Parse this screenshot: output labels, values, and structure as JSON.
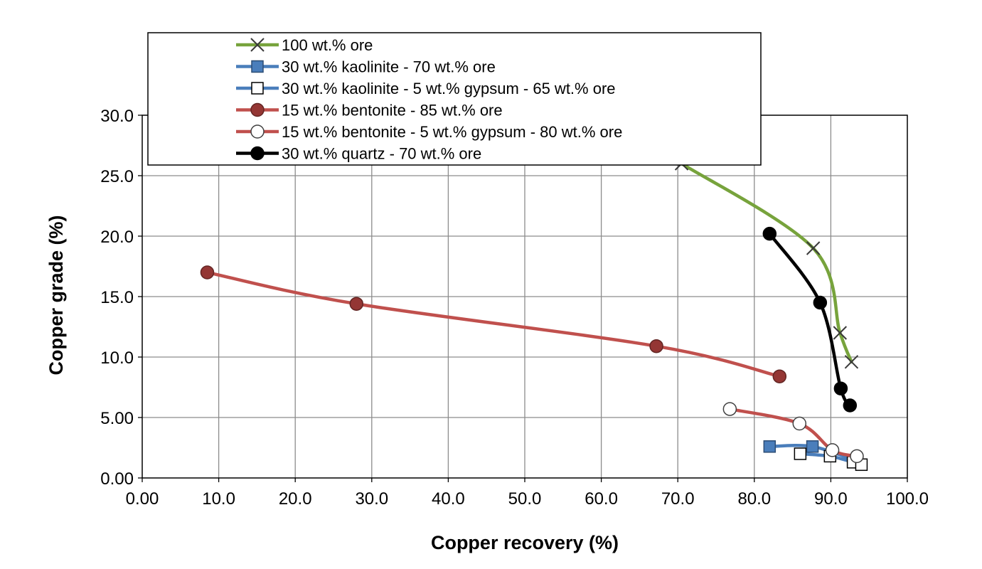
{
  "chart_data": {
    "type": "line",
    "title": "",
    "xlabel": "Copper recovery (%)",
    "ylabel": "Copper grade (%)",
    "xlim": [
      0,
      100
    ],
    "ylim": [
      0,
      30
    ],
    "grid": true,
    "legend_position": "top (overlapping plot, upper-left of center)",
    "x_ticks": [
      {
        "value": 0,
        "label": "0.00"
      },
      {
        "value": 10,
        "label": "10.0"
      },
      {
        "value": 20,
        "label": "20.0"
      },
      {
        "value": 30,
        "label": "30.0"
      },
      {
        "value": 40,
        "label": "40.0"
      },
      {
        "value": 50,
        "label": "50.0"
      },
      {
        "value": 60,
        "label": "60.0"
      },
      {
        "value": 70,
        "label": "70.0"
      },
      {
        "value": 80,
        "label": "80.0"
      },
      {
        "value": 90,
        "label": "90.0"
      },
      {
        "value": 100,
        "label": "100.0"
      }
    ],
    "y_ticks": [
      {
        "value": 0,
        "label": "0.00"
      },
      {
        "value": 5,
        "label": "5.00"
      },
      {
        "value": 10,
        "label": "10.0"
      },
      {
        "value": 15,
        "label": "15.0"
      },
      {
        "value": 20,
        "label": "20.0"
      },
      {
        "value": 25,
        "label": "25.0"
      },
      {
        "value": 30,
        "label": "30.0"
      }
    ],
    "series": [
      {
        "name": "100 wt.% ore",
        "color": "#77a33c",
        "marker": "x",
        "marker_color": "#3a3a3a",
        "points": [
          [
            70.5,
            26.0
          ],
          [
            87.7,
            19.0
          ],
          [
            91.2,
            12.0
          ],
          [
            92.7,
            9.6
          ]
        ]
      },
      {
        "name": "30 wt.% kaolinite - 70 wt.% ore",
        "color": "#4a7ebb",
        "marker": "square-filled",
        "marker_color": "#4a7ebb",
        "points": [
          [
            82.0,
            2.6
          ],
          [
            87.6,
            2.6
          ],
          [
            93.4,
            1.4
          ]
        ]
      },
      {
        "name": "30 wt.% kaolinite - 5 wt.% gypsum - 65 wt.% ore",
        "color": "#4a7ebb",
        "marker": "square-open",
        "marker_color": "#ffffff",
        "points": [
          [
            86.0,
            2.0
          ],
          [
            89.9,
            1.8
          ],
          [
            92.9,
            1.3
          ],
          [
            94.0,
            1.1
          ]
        ]
      },
      {
        "name": "15 wt.% bentonite - 85 wt.% ore",
        "color": "#c0504d",
        "marker": "circle-filled",
        "marker_color": "#943634",
        "points": [
          [
            8.5,
            17.0
          ],
          [
            28.0,
            14.4
          ],
          [
            67.2,
            10.9
          ],
          [
            83.3,
            8.4
          ]
        ]
      },
      {
        "name": "15 wt.% bentonite - 5 wt.% gypsum - 80 wt.% ore",
        "color": "#c0504d",
        "marker": "circle-open",
        "marker_color": "#ffffff",
        "points": [
          [
            76.8,
            5.7
          ],
          [
            85.9,
            4.5
          ],
          [
            90.2,
            2.3
          ],
          [
            93.4,
            1.8
          ]
        ]
      },
      {
        "name": "30 wt.% quartz - 70 wt.% ore",
        "color": "#000000",
        "marker": "circle-filled",
        "marker_color": "#000000",
        "points": [
          [
            82.0,
            20.2
          ],
          [
            88.6,
            14.5
          ],
          [
            91.3,
            7.4
          ],
          [
            92.5,
            6.0
          ]
        ]
      }
    ]
  }
}
